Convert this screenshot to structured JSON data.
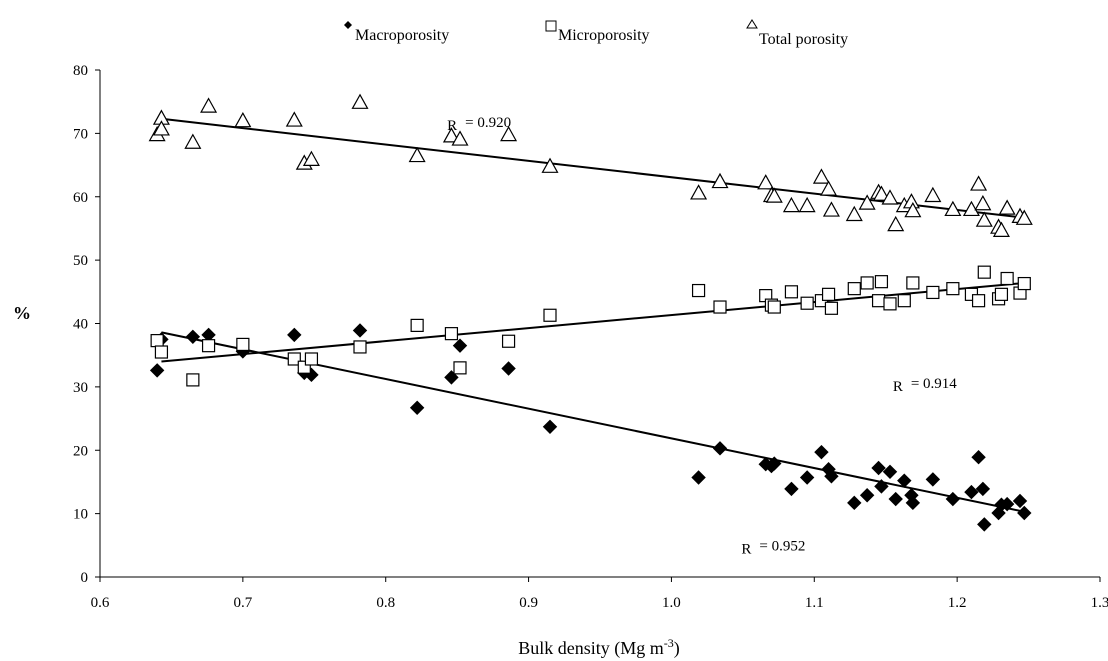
{
  "chart_data": {
    "type": "scatter",
    "xlabel": "Bulk density (Mg m-3)",
    "ylabel": "%",
    "xlim": [
      0.6,
      1.3
    ],
    "ylim": [
      0,
      80
    ],
    "x_ticks": [
      "0.6",
      "0.7",
      "0.8",
      "0.9",
      "1.0",
      "1.1",
      "1.2",
      "1.3"
    ],
    "y_ticks": [
      "0",
      "10",
      "20",
      "30",
      "40",
      "50",
      "60",
      "70",
      "80"
    ],
    "grid": false,
    "legend_position": "top",
    "series": [
      {
        "name": "Macroporosity",
        "marker": "filled-diamond",
        "color": "#000000",
        "points": [
          [
            0.64,
            32.6
          ],
          [
            0.643,
            37.5
          ],
          [
            0.665,
            37.9
          ],
          [
            0.676,
            38.2
          ],
          [
            0.7,
            35.6
          ],
          [
            0.736,
            38.2
          ],
          [
            0.743,
            32.2
          ],
          [
            0.748,
            31.9
          ],
          [
            0.782,
            38.9
          ],
          [
            0.822,
            26.7
          ],
          [
            0.846,
            31.5
          ],
          [
            0.852,
            36.5
          ],
          [
            0.886,
            32.9
          ],
          [
            0.915,
            23.7
          ],
          [
            1.019,
            15.7
          ],
          [
            1.034,
            20.3
          ],
          [
            1.066,
            17.8
          ],
          [
            1.07,
            17.5
          ],
          [
            1.072,
            17.9
          ],
          [
            1.084,
            13.9
          ],
          [
            1.095,
            15.7
          ],
          [
            1.105,
            19.7
          ],
          [
            1.11,
            17.0
          ],
          [
            1.112,
            15.9
          ],
          [
            1.128,
            11.7
          ],
          [
            1.137,
            12.9
          ],
          [
            1.145,
            17.2
          ],
          [
            1.147,
            14.3
          ],
          [
            1.153,
            16.6
          ],
          [
            1.157,
            12.3
          ],
          [
            1.163,
            15.2
          ],
          [
            1.168,
            12.9
          ],
          [
            1.169,
            11.7
          ],
          [
            1.183,
            15.4
          ],
          [
            1.197,
            12.3
          ],
          [
            1.21,
            13.4
          ],
          [
            1.215,
            18.9
          ],
          [
            1.218,
            13.9
          ],
          [
            1.219,
            8.3
          ],
          [
            1.229,
            10.1
          ],
          [
            1.231,
            11.4
          ],
          [
            1.235,
            11.5
          ],
          [
            1.244,
            12.0
          ],
          [
            1.247,
            10.1
          ]
        ]
      },
      {
        "name": "Microporosity",
        "marker": "open-square",
        "color": "#000000",
        "points": [
          [
            0.64,
            37.3
          ],
          [
            0.643,
            35.5
          ],
          [
            0.665,
            31.1
          ],
          [
            0.676,
            36.5
          ],
          [
            0.7,
            36.7
          ],
          [
            0.736,
            34.4
          ],
          [
            0.743,
            33.1
          ],
          [
            0.748,
            34.4
          ],
          [
            0.782,
            36.3
          ],
          [
            0.822,
            39.7
          ],
          [
            0.846,
            38.4
          ],
          [
            0.852,
            33.0
          ],
          [
            0.886,
            37.2
          ],
          [
            0.915,
            41.3
          ],
          [
            1.019,
            45.2
          ],
          [
            1.034,
            42.6
          ],
          [
            1.066,
            44.4
          ],
          [
            1.07,
            42.9
          ],
          [
            1.072,
            42.6
          ],
          [
            1.084,
            45.0
          ],
          [
            1.095,
            43.2
          ],
          [
            1.105,
            43.6
          ],
          [
            1.11,
            44.6
          ],
          [
            1.112,
            42.4
          ],
          [
            1.128,
            45.5
          ],
          [
            1.137,
            46.4
          ],
          [
            1.145,
            43.6
          ],
          [
            1.147,
            46.6
          ],
          [
            1.153,
            43.1
          ],
          [
            1.163,
            43.6
          ],
          [
            1.169,
            46.4
          ],
          [
            1.183,
            44.9
          ],
          [
            1.197,
            45.5
          ],
          [
            1.21,
            44.6
          ],
          [
            1.215,
            43.6
          ],
          [
            1.219,
            48.1
          ],
          [
            1.229,
            43.9
          ],
          [
            1.231,
            44.6
          ],
          [
            1.235,
            47.1
          ],
          [
            1.244,
            44.8
          ],
          [
            1.247,
            46.3
          ]
        ]
      },
      {
        "name": "Total porosity",
        "marker": "open-triangle",
        "color": "#000000",
        "points": [
          [
            0.64,
            69.8
          ],
          [
            0.643,
            72.4
          ],
          [
            0.643,
            70.7
          ],
          [
            0.665,
            68.6
          ],
          [
            0.676,
            74.3
          ],
          [
            0.7,
            72.0
          ],
          [
            0.736,
            72.1
          ],
          [
            0.743,
            65.3
          ],
          [
            0.748,
            65.9
          ],
          [
            0.782,
            74.9
          ],
          [
            0.822,
            66.5
          ],
          [
            0.846,
            69.6
          ],
          [
            0.852,
            69.1
          ],
          [
            0.886,
            69.8
          ],
          [
            0.915,
            64.8
          ],
          [
            1.019,
            60.6
          ],
          [
            1.034,
            62.4
          ],
          [
            1.066,
            62.2
          ],
          [
            1.07,
            60.2
          ],
          [
            1.072,
            60.1
          ],
          [
            1.084,
            58.6
          ],
          [
            1.095,
            58.6
          ],
          [
            1.105,
            63.1
          ],
          [
            1.11,
            61.2
          ],
          [
            1.112,
            57.9
          ],
          [
            1.128,
            57.2
          ],
          [
            1.137,
            59.0
          ],
          [
            1.145,
            60.7
          ],
          [
            1.147,
            60.4
          ],
          [
            1.153,
            59.8
          ],
          [
            1.157,
            55.6
          ],
          [
            1.163,
            58.6
          ],
          [
            1.168,
            59.2
          ],
          [
            1.169,
            57.8
          ],
          [
            1.183,
            60.2
          ],
          [
            1.197,
            58.0
          ],
          [
            1.21,
            58.0
          ],
          [
            1.215,
            62.0
          ],
          [
            1.218,
            58.9
          ],
          [
            1.219,
            56.3
          ],
          [
            1.229,
            55.2
          ],
          [
            1.231,
            54.7
          ],
          [
            1.235,
            58.2
          ],
          [
            1.244,
            56.9
          ],
          [
            1.247,
            56.6
          ]
        ]
      }
    ],
    "trendlines": [
      {
        "series": "Total porosity",
        "x": [
          0.643,
          1.247
        ],
        "y": [
          72.3,
          56.7
        ]
      },
      {
        "series": "Microporosity",
        "x": [
          0.643,
          1.247
        ],
        "y": [
          34.0,
          46.4
        ]
      },
      {
        "series": "Macroporosity",
        "x": [
          0.643,
          1.247
        ],
        "y": [
          38.6,
          10.3
        ]
      }
    ],
    "annotations": [
      {
        "text": "R",
        "value": "= 0.920",
        "at_x": 0.843,
        "at_y": 71.3
      },
      {
        "text": "R",
        "value": "= 0.914",
        "at_x": 1.155,
        "at_y": 30.1
      },
      {
        "text": "R",
        "value": "= 0.952",
        "at_x": 1.049,
        "at_y": 4.5
      }
    ]
  }
}
